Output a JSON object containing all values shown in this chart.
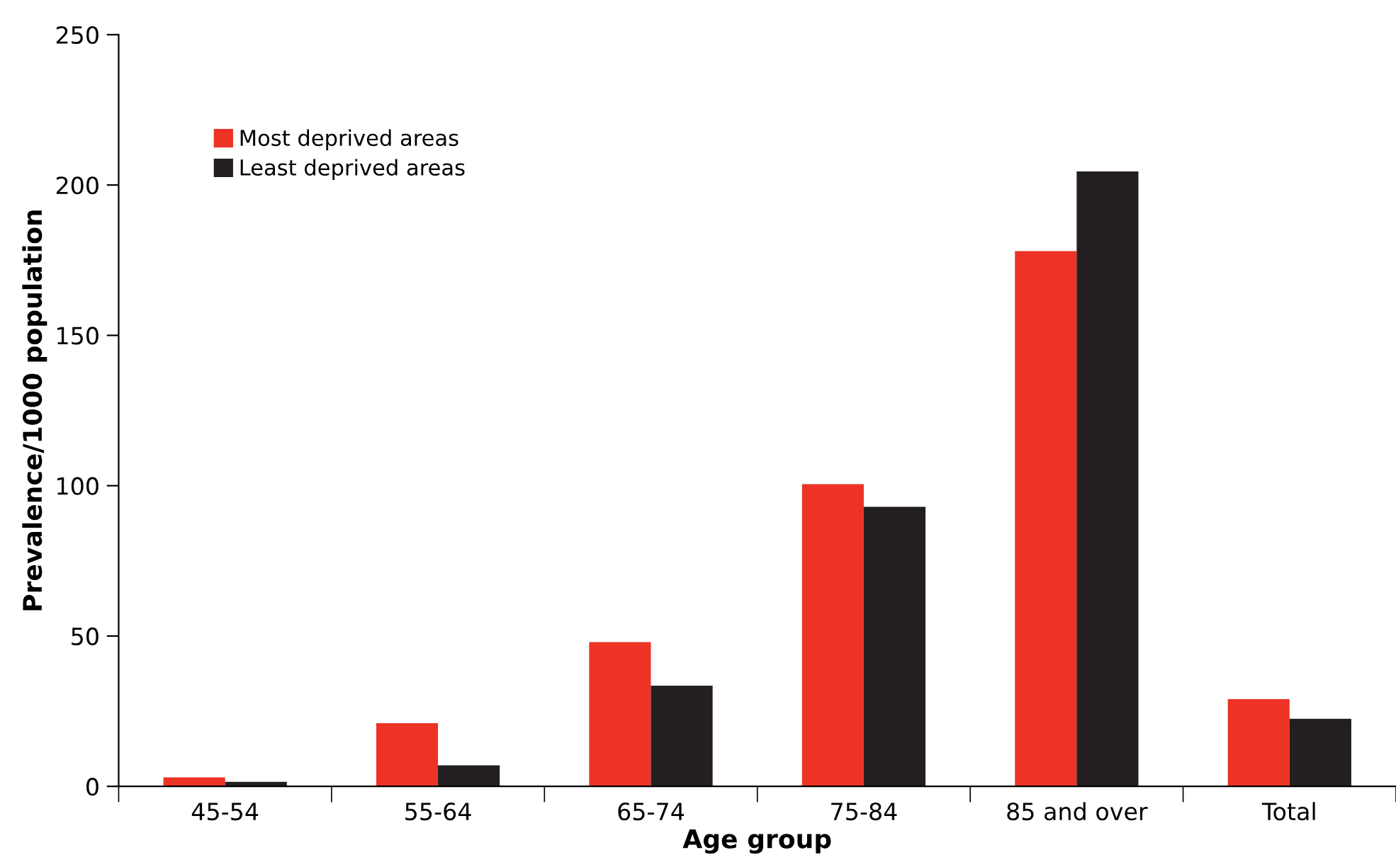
{
  "chart_data": {
    "type": "bar",
    "xlabel": "Age group",
    "ylabel": "Prevalence/1000 population",
    "categories": [
      "45-54",
      "55-64",
      "65-74",
      "75-84",
      "85 and over",
      "Total"
    ],
    "series": [
      {
        "name": "Most deprived areas",
        "color": "#ec3326",
        "values": [
          3,
          21,
          48,
          100.5,
          178,
          29
        ]
      },
      {
        "name": "Least deprived areas",
        "color": "#231f20",
        "values": [
          1.5,
          7,
          33.5,
          93,
          204.5,
          22.5
        ]
      }
    ],
    "ylim": [
      0,
      250
    ],
    "yticks": [
      0,
      50,
      100,
      150,
      200,
      250
    ],
    "grid": false,
    "legend": "top left"
  }
}
